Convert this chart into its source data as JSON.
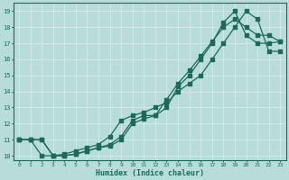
{
  "xlabel": "Humidex (Indice chaleur)",
  "xlim": [
    -0.5,
    23.5
  ],
  "ylim": [
    9.7,
    19.5
  ],
  "xticks": [
    0,
    1,
    2,
    3,
    4,
    5,
    6,
    7,
    8,
    9,
    10,
    11,
    12,
    13,
    14,
    15,
    16,
    17,
    18,
    19,
    20,
    21,
    22,
    23
  ],
  "yticks": [
    10,
    11,
    12,
    13,
    14,
    15,
    16,
    17,
    18,
    19
  ],
  "bg_color": "#b8ddd8",
  "grid_color": "#d0eae8",
  "line_color": "#1a6b5a",
  "line1_x": [
    0,
    1,
    2,
    3,
    4,
    5,
    6,
    7,
    8,
    9,
    10,
    11,
    12,
    13,
    14,
    15,
    16,
    17,
    18,
    19,
    20,
    21,
    22,
    23
  ],
  "line1_y": [
    11.0,
    11.0,
    10.0,
    10.0,
    10.0,
    10.1,
    10.3,
    10.5,
    10.6,
    11.0,
    12.0,
    12.3,
    12.5,
    13.0,
    14.3,
    15.0,
    16.0,
    17.0,
    18.3,
    19.0,
    17.5,
    17.0,
    17.0,
    17.1
  ],
  "line2_x": [
    0,
    1,
    2,
    3,
    4,
    5,
    6,
    7,
    8,
    9,
    10,
    11,
    12,
    13,
    14,
    15,
    16,
    17,
    18,
    19,
    20,
    21,
    22,
    23
  ],
  "line2_y": [
    11.0,
    11.0,
    11.0,
    10.0,
    10.0,
    10.1,
    10.3,
    10.5,
    10.7,
    11.2,
    12.2,
    12.5,
    12.5,
    13.5,
    14.5,
    15.3,
    16.2,
    17.1,
    18.0,
    18.5,
    18.0,
    17.5,
    17.5,
    17.1
  ],
  "line3_x": [
    0,
    1,
    2,
    3,
    4,
    5,
    6,
    7,
    8,
    9,
    10,
    11,
    12,
    13,
    14,
    15,
    16,
    17,
    18,
    19,
    20,
    21,
    22,
    23
  ],
  "line3_y": [
    11.0,
    11.0,
    11.0,
    10.0,
    10.1,
    10.3,
    10.5,
    10.7,
    11.2,
    12.2,
    12.5,
    12.7,
    13.0,
    13.3,
    14.0,
    14.5,
    15.0,
    16.0,
    17.0,
    18.0,
    19.0,
    18.5,
    16.5,
    16.5
  ]
}
